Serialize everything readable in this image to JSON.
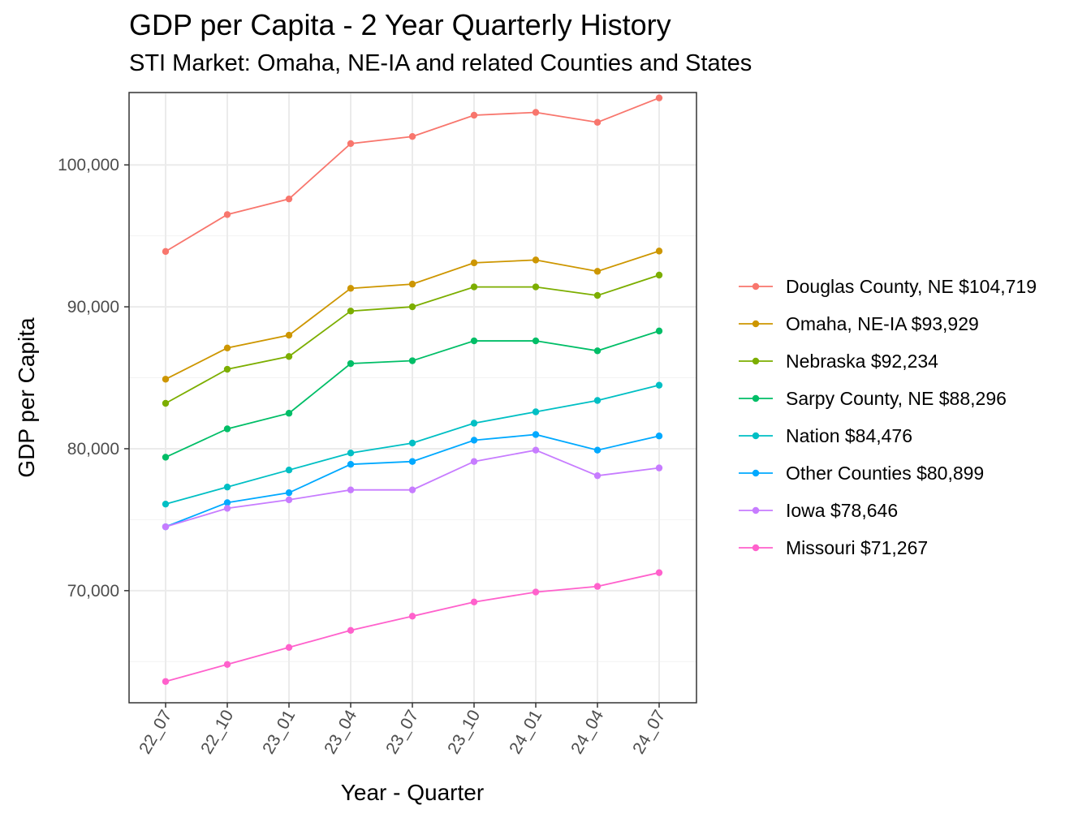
{
  "chart_data": {
    "type": "line",
    "title": "GDP per Capita - 2 Year Quarterly History",
    "subtitle": "STI Market: Omaha, NE-IA and related Counties and States",
    "xlabel": "Year - Quarter",
    "ylabel": "GDP per Capita",
    "categories": [
      "22_07",
      "22_10",
      "23_01",
      "23_04",
      "23_07",
      "23_10",
      "24_01",
      "24_04",
      "24_07"
    ],
    "ylim": [
      62100,
      105100
    ],
    "yticks": [
      70000,
      80000,
      90000,
      100000
    ],
    "ytick_labels": [
      "70,000",
      "80,000",
      "90,000",
      "100,000"
    ],
    "grid": true,
    "legend_position": "right",
    "series": [
      {
        "name": "Douglas County, NE $104,719",
        "color": "#F8766D",
        "values": [
          93900,
          96500,
          97600,
          101500,
          102000,
          103500,
          103700,
          103000,
          104719
        ]
      },
      {
        "name": "Omaha, NE-IA $93,929",
        "color": "#CD9600",
        "values": [
          84900,
          87100,
          88000,
          91300,
          91600,
          93100,
          93300,
          92500,
          93929
        ]
      },
      {
        "name": "Nebraska $92,234",
        "color": "#7CAE00",
        "values": [
          83200,
          85600,
          86500,
          89700,
          90000,
          91400,
          91400,
          90800,
          92234
        ]
      },
      {
        "name": "Sarpy County, NE $88,296",
        "color": "#00BE67",
        "values": [
          79400,
          81400,
          82500,
          86000,
          86200,
          87600,
          87600,
          86900,
          88296
        ]
      },
      {
        "name": "Nation $84,476",
        "color": "#00BFC4",
        "values": [
          76100,
          77300,
          78500,
          79700,
          80400,
          81800,
          82600,
          83400,
          84476
        ]
      },
      {
        "name": "Other Counties $80,899",
        "color": "#00A9FF",
        "values": [
          74500,
          76200,
          76900,
          78900,
          79100,
          80600,
          81000,
          79900,
          80899
        ]
      },
      {
        "name": "Iowa $78,646",
        "color": "#C77CFF",
        "values": [
          74500,
          75800,
          76400,
          77100,
          77100,
          79100,
          79900,
          78100,
          78646
        ]
      },
      {
        "name": "Missouri $71,267",
        "color": "#FF61CC",
        "values": [
          63600,
          64800,
          66000,
          67200,
          68200,
          69200,
          69900,
          70300,
          71267
        ]
      }
    ]
  }
}
